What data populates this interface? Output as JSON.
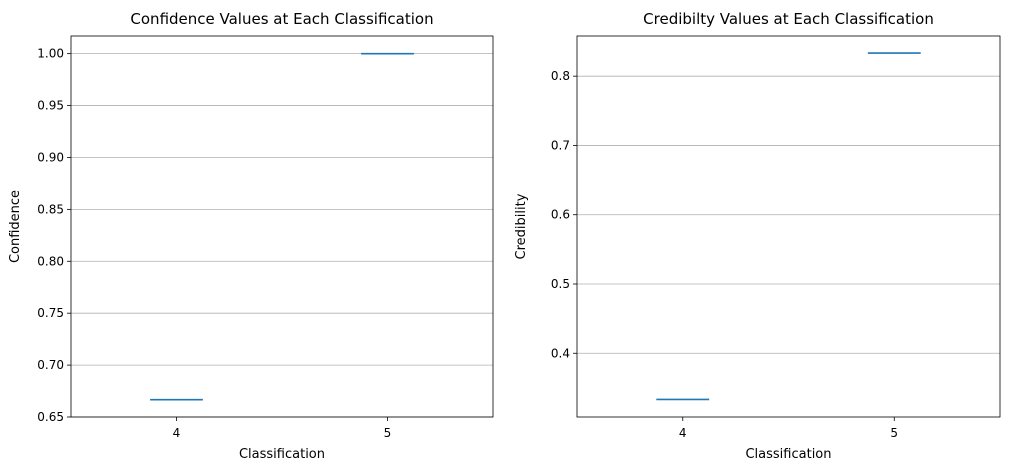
{
  "chart_data": [
    {
      "type": "box",
      "title": "Confidence Values at Each Classification",
      "xlabel": "Classification",
      "ylabel": "Confidence",
      "categories": [
        "4",
        "5"
      ],
      "values": [
        0.6667,
        1.0
      ],
      "ylim": [
        0.65,
        1.017
      ],
      "yticks": [
        0.65,
        0.7,
        0.75,
        0.8,
        0.85,
        0.9,
        0.95,
        1.0
      ],
      "ytick_labels": [
        "0.65",
        "0.70",
        "0.75",
        "0.80",
        "0.85",
        "0.90",
        "0.95",
        "1.00"
      ],
      "grid": "y",
      "color": "#1f77b4"
    },
    {
      "type": "box",
      "title": "Credibilty Values at Each Classification",
      "xlabel": "Classification",
      "ylabel": "Credibility",
      "categories": [
        "4",
        "5"
      ],
      "values": [
        0.3333,
        0.8333
      ],
      "ylim": [
        0.308,
        0.858
      ],
      "yticks": [
        0.4,
        0.5,
        0.6,
        0.7,
        0.8
      ],
      "ytick_labels": [
        "0.4",
        "0.5",
        "0.6",
        "0.7",
        "0.8"
      ],
      "grid": "y",
      "color": "#1f77b4"
    }
  ]
}
